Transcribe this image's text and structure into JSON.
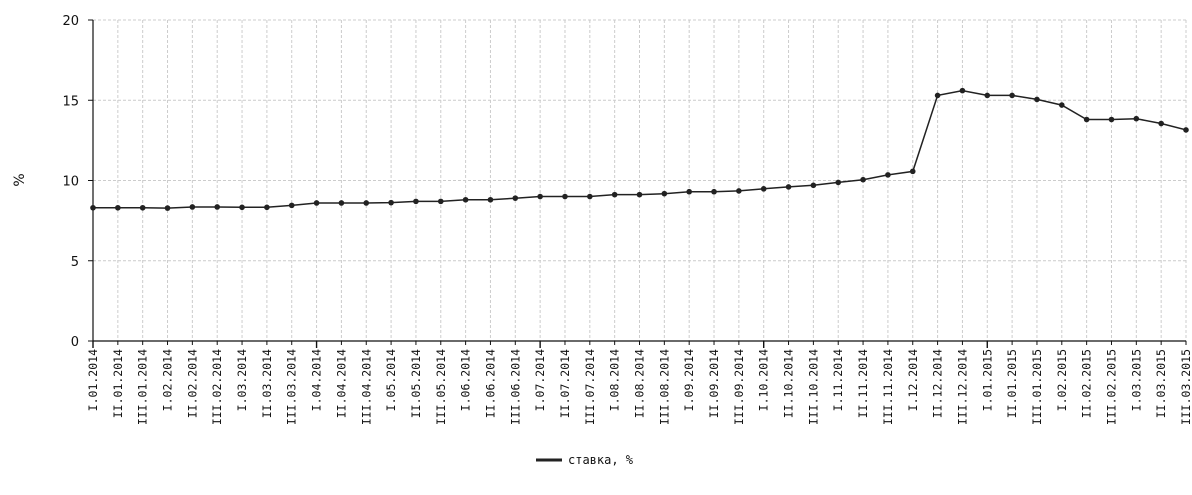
{
  "chart_data": {
    "type": "line",
    "ylabel": "%",
    "xlabel": "",
    "ylim": [
      0,
      20
    ],
    "y_ticks": [
      0,
      5,
      10,
      15,
      20
    ],
    "grid": true,
    "legend_position": "bottom-center",
    "line_color": "#222222",
    "grid_color": "#cccccc",
    "categories": [
      "I.01.2014",
      "II.01.2014",
      "III.01.2014",
      "I.02.2014",
      "II.02.2014",
      "III.02.2014",
      "I.03.2014",
      "II.03.2014",
      "III.03.2014",
      "I.04.2014",
      "II.04.2014",
      "III.04.2014",
      "I.05.2014",
      "II.05.2014",
      "III.05.2014",
      "I.06.2014",
      "II.06.2014",
      "III.06.2014",
      "I.07.2014",
      "II.07.2014",
      "III.07.2014",
      "I.08.2014",
      "II.08.2014",
      "III.08.2014",
      "I.09.2014",
      "II.09.2014",
      "III.09.2014",
      "I.10.2014",
      "II.10.2014",
      "III.10.2014",
      "I.11.2014",
      "II.11.2014",
      "III.11.2014",
      "I.12.2014",
      "II.12.2014",
      "III.12.2014",
      "I.01.2015",
      "II.01.2015",
      "III.01.2015",
      "I.02.2015",
      "II.02.2015",
      "III.02.2015",
      "I.03.2015",
      "II.03.2015",
      "III.03.2015"
    ],
    "series": [
      {
        "name": "ставка, %",
        "values": [
          8.3,
          8.3,
          8.3,
          8.28,
          8.35,
          8.35,
          8.33,
          8.33,
          8.45,
          8.6,
          8.6,
          8.6,
          8.62,
          8.7,
          8.7,
          8.8,
          8.8,
          8.9,
          9.0,
          9.0,
          9.0,
          9.12,
          9.12,
          9.18,
          9.3,
          9.3,
          9.35,
          9.48,
          9.6,
          9.7,
          9.88,
          10.05,
          10.35,
          10.57,
          15.3,
          15.6,
          15.3,
          15.3,
          15.05,
          14.7,
          13.8,
          13.8,
          13.85,
          13.55,
          13.15
        ]
      }
    ]
  }
}
